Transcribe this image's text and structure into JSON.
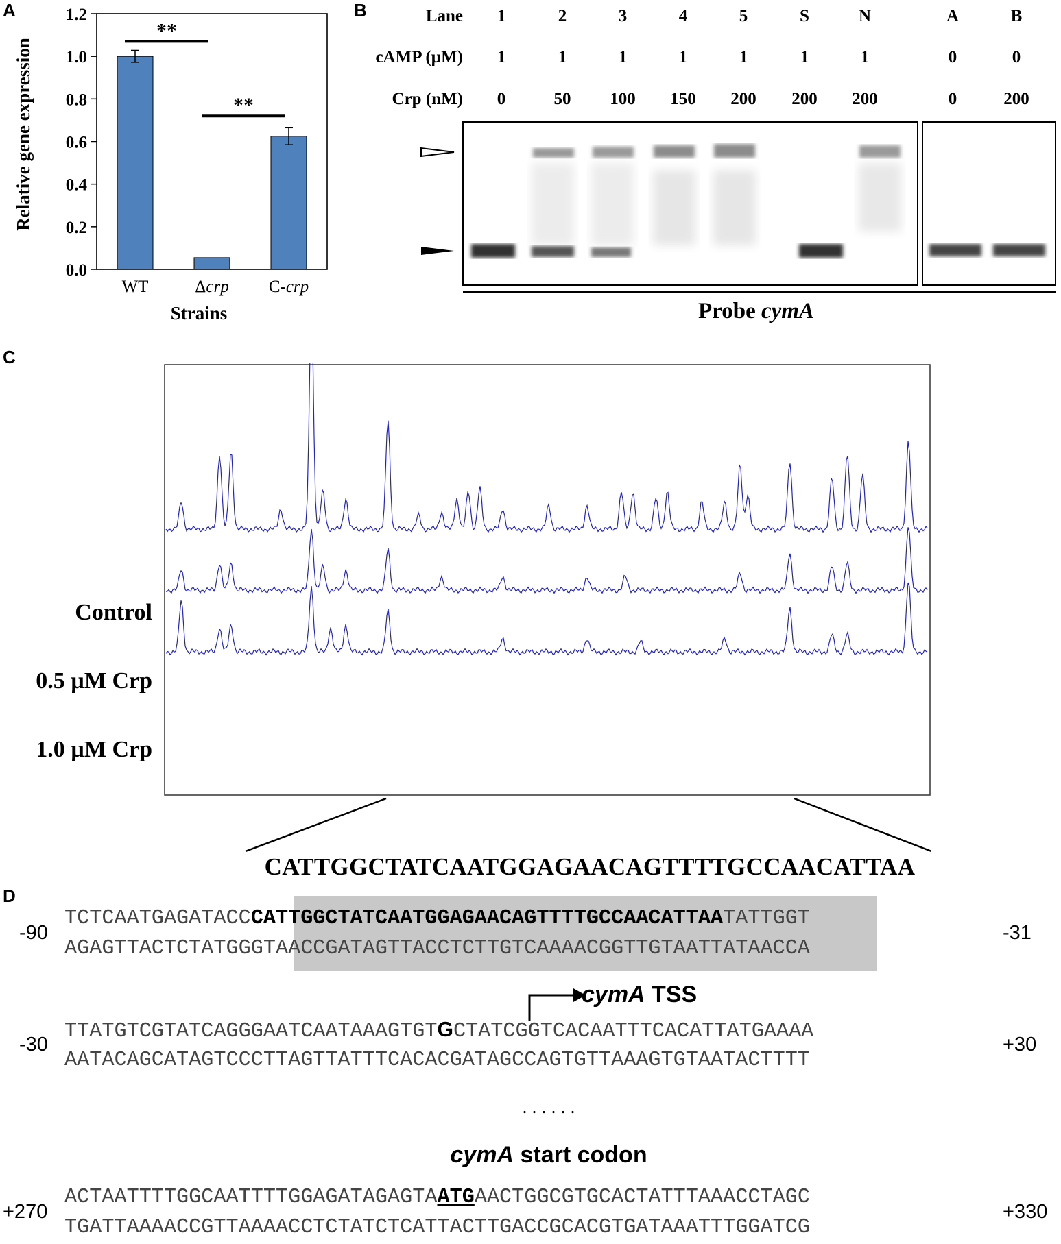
{
  "panel_labels": {
    "a": "A",
    "b": "B",
    "c": "C",
    "d": "D"
  },
  "chart_data": {
    "type": "bar",
    "categories": [
      "WT",
      "Δcrp",
      "C-crp"
    ],
    "values": [
      1.0,
      0.055,
      0.625
    ],
    "errors": [
      0.028,
      0.0,
      0.04
    ],
    "ylabel": "Relative gene expression",
    "xlabel": "Strains",
    "ylim": [
      0,
      1.2
    ],
    "yticks": [
      "0.0",
      "0.2",
      "0.4",
      "0.6",
      "0.8",
      "1.0",
      "1.2"
    ],
    "bar_color": "#4f81bd",
    "significance": [
      {
        "between": [
          "WT",
          "Δcrp"
        ],
        "label": "**"
      },
      {
        "between": [
          "Δcrp",
          "C-crp"
        ],
        "label": "**"
      }
    ]
  },
  "emsa": {
    "row_labels": {
      "lane": "Lane",
      "camp": "cAMP (µM)",
      "crp": "Crp (nM)"
    },
    "lanes": [
      {
        "lane": "1",
        "camp": "1",
        "crp": "0"
      },
      {
        "lane": "2",
        "camp": "1",
        "crp": "50"
      },
      {
        "lane": "3",
        "camp": "1",
        "crp": "100"
      },
      {
        "lane": "4",
        "camp": "1",
        "crp": "150"
      },
      {
        "lane": "5",
        "camp": "1",
        "crp": "200"
      },
      {
        "lane": "S",
        "camp": "1",
        "crp": "200"
      },
      {
        "lane": "N",
        "camp": "1",
        "crp": "200"
      },
      {
        "lane": "A",
        "camp": "0",
        "crp": "0"
      },
      {
        "lane": "B",
        "camp": "0",
        "crp": "200"
      }
    ],
    "probe_prefix": "Probe ",
    "probe_name": "cymA"
  },
  "footprint": {
    "traces": [
      "Control",
      "0.5 µM Crp",
      "1.0 µM Crp"
    ],
    "trace_color": "#2222cc",
    "protected_sequence": "CATTGGCTATCAATGGAGAACAGTTTTGCCAACATTAA"
  },
  "sequence": {
    "block1": {
      "start": "-90",
      "end": "-31",
      "top_pre": "TCTCAATGAGATACC",
      "top_bold": "CATTGGCTATCAATGGAGAACAGTTTTGCCAACATTAA",
      "top_post": "TATTGGT",
      "bottom": "AGAGTTACTCTATGGGTAACCGATAGTTACCTCTTGTCAAAACGGTTGTAATTATAACCA"
    },
    "tss_gene": "cymA",
    "tss_label": " TSS",
    "block2": {
      "start": "-30",
      "end": "+30",
      "top_pre": "TTATGTCGTATCAGGGAATCAATAAAGTGT",
      "top_bold": "G",
      "top_post": "CTATCGGTCACAATTTCACATTATGAAAA",
      "bottom": "AATACAGCATAGTCCCTTAGTTATTTCACACGATAGCCAGTGTTAAAGTGTAATACTTTT"
    },
    "ellipsis": ". . . . . .",
    "start_codon_gene": "cymA",
    "start_codon_label": " start codon",
    "block3": {
      "start": "+270",
      "end": "+330",
      "top_pre": "ACTAATTTTGGCAATTTTGGAGATAGAGTA",
      "top_bold": "ATG",
      "top_post": "AACTGGCGTGCACTATTTAAACCTAGC",
      "bottom": "TGATTAAAACCGTTAAAACCTCTATCTCATTACTTGACCGCACGTGATAAATTTGGATCG"
    }
  }
}
